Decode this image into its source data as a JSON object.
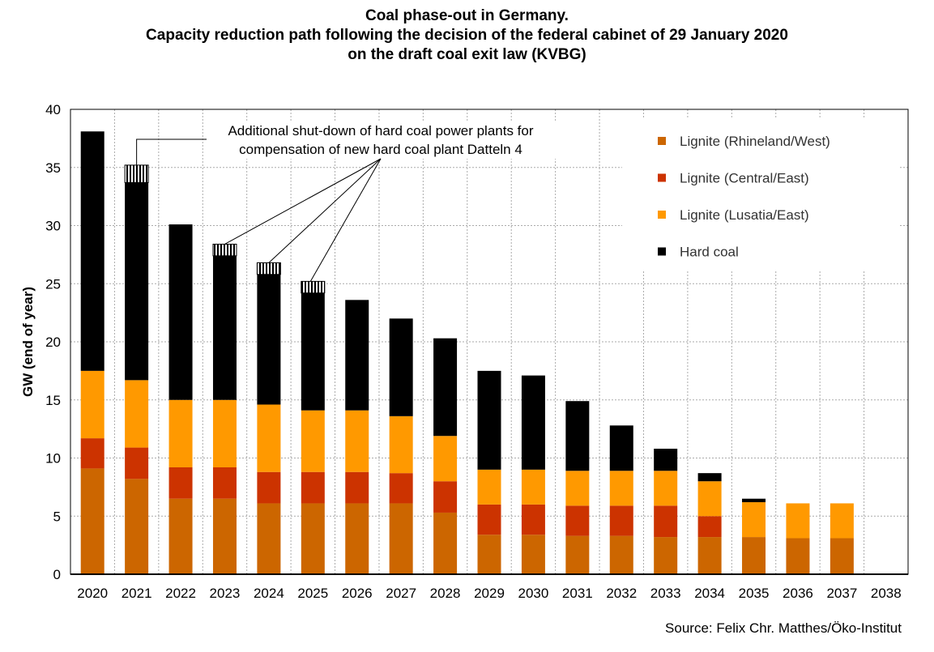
{
  "chart_data": {
    "type": "bar",
    "stacked": true,
    "title": [
      "Coal phase-out in Germany.",
      "Capacity reduction path following the decision of the federal cabinet of 29 January 2020",
      "on the draft coal exit law (KVBG)"
    ],
    "xlabel": "",
    "ylabel": "GW (end of year)",
    "ylim": [
      0,
      40
    ],
    "yticks": [
      0,
      5,
      10,
      15,
      20,
      25,
      30,
      35,
      40
    ],
    "grid": true,
    "legend_position": "top-right",
    "categories": [
      "2020",
      "2021",
      "2022",
      "2023",
      "2024",
      "2025",
      "2026",
      "2027",
      "2028",
      "2029",
      "2030",
      "2031",
      "2032",
      "2033",
      "2034",
      "2035",
      "2036",
      "2037",
      "2038"
    ],
    "series": [
      {
        "name": "Lignite (Rhineland/West)",
        "color": "#CC6600",
        "values": [
          9.1,
          8.2,
          6.5,
          6.5,
          6.1,
          6.1,
          6.1,
          6.1,
          5.3,
          3.4,
          3.4,
          3.3,
          3.3,
          3.2,
          3.2,
          3.2,
          3.1,
          3.1,
          0
        ]
      },
      {
        "name": "Lignite (Central/East)",
        "color": "#CC3300",
        "values": [
          2.6,
          2.7,
          2.7,
          2.7,
          2.7,
          2.7,
          2.7,
          2.6,
          2.7,
          2.6,
          2.6,
          2.6,
          2.6,
          2.7,
          1.8,
          0,
          0,
          0,
          0
        ]
      },
      {
        "name": "Lignite (Lusatia/East)",
        "color": "#FF9900",
        "values": [
          5.8,
          5.8,
          5.8,
          5.8,
          5.8,
          5.3,
          5.3,
          4.9,
          3.9,
          3.0,
          3.0,
          3.0,
          3.0,
          3.0,
          3.0,
          3.0,
          3.0,
          3.0,
          0
        ]
      },
      {
        "name": "Hard coal",
        "color": "#000000",
        "values": [
          20.6,
          17.0,
          15.1,
          12.4,
          11.2,
          10.1,
          9.5,
          8.4,
          8.4,
          8.5,
          8.1,
          6.0,
          3.9,
          1.9,
          0.7,
          0.3,
          0,
          0,
          0
        ]
      }
    ],
    "additional_shutdown": {
      "pattern": "vertical-hatch",
      "values": [
        0,
        1.5,
        0,
        1.0,
        1.0,
        1.0,
        0,
        0,
        0,
        0,
        0,
        0,
        0,
        0,
        0,
        0,
        0,
        0,
        0
      ]
    },
    "annotation": [
      "Additional shut-down of hard coal power plants for",
      "compensation of new hard coal plant Datteln 4"
    ]
  },
  "source": "Source: Felix Chr. Matthes/Öko-Institut"
}
